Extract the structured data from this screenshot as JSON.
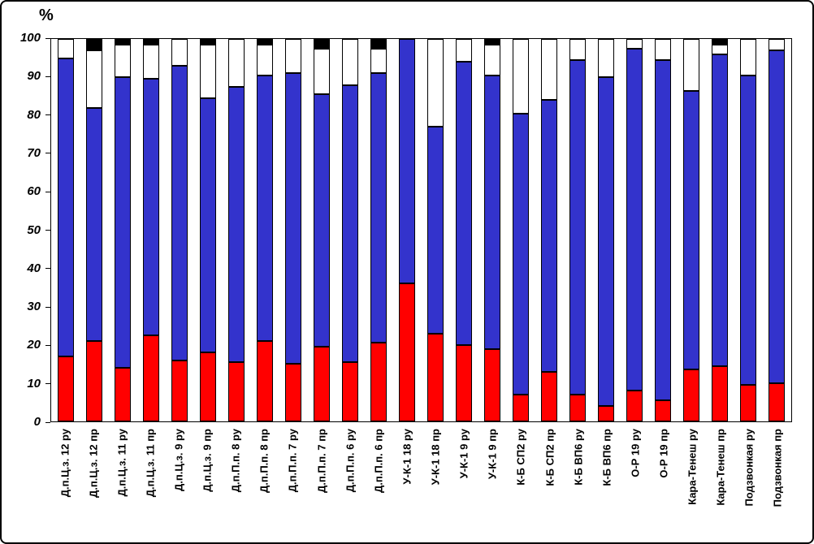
{
  "chart_data": {
    "type": "bar",
    "stacked": true,
    "title": "",
    "xlabel": "",
    "ylabel": "%",
    "ylim": [
      0,
      100
    ],
    "yticks": [
      0,
      10,
      20,
      30,
      40,
      50,
      60,
      70,
      80,
      90,
      100
    ],
    "grid": false,
    "legend": "none",
    "categories": [
      "Д.п.Ц.з. 12 ру",
      "Д.п.Ц.з. 12 пр",
      "Д.п.Ц.з. 11 ру",
      "Д.п.Ц.з. 11 пр",
      "Д.п.Ц.з. 9 ру",
      "Д.п.Ц.з. 9 пр",
      "Д.п.П.п. 8 ру",
      "Д.п.П.п. 8 пр",
      "Д.п.П.п. 7 ру",
      "Д.п.П.п. 7 пр",
      "Д.п.П.п. 6 ру",
      "Д.п.П.п. 6 пр",
      "У-К-1 18 ру",
      "У-К-1 18 пр",
      "У-К-1 9 ру",
      "У-К-1 9 пр",
      "К-Б СП2 ру",
      "К-Б СП2 пр",
      "К-Б ВП6 ру",
      "К-Б ВП6 пр",
      "О-Р 19 ру",
      "О-Р 19 пр",
      "Кара-Тенеш ру",
      "Кара-Тенеш пр",
      "Подзвонкая ру",
      "Подзвонкая пр"
    ],
    "series": [
      {
        "name": "red",
        "color": "#ff0000",
        "values": [
          17,
          21,
          14,
          22.5,
          16,
          18,
          15.5,
          21,
          15,
          19.5,
          15.5,
          20.5,
          36,
          23,
          20,
          19,
          7,
          13,
          7,
          4,
          8,
          5.5,
          13.5,
          14.5,
          9.5,
          10
        ]
      },
      {
        "name": "blue",
        "color": "#3333cc",
        "values": [
          78,
          61,
          76,
          67,
          77,
          66.5,
          72,
          69.5,
          76,
          66,
          72.5,
          70.5,
          64,
          54,
          74,
          71.5,
          73.5,
          71,
          87.5,
          86,
          89.5,
          89,
          73,
          81.5,
          81,
          87
        ]
      },
      {
        "name": "white",
        "color": "#ffffff",
        "values": [
          5,
          15,
          8.5,
          9,
          7,
          14,
          12.5,
          8,
          9,
          12,
          12,
          6.5,
          0,
          23,
          6,
          8,
          19.5,
          16,
          5.5,
          10,
          2.5,
          5.5,
          13.5,
          2.5,
          9.5,
          3
        ]
      },
      {
        "name": "black",
        "color": "#000000",
        "values": [
          0,
          3,
          1.5,
          1.5,
          0,
          1.5,
          0,
          1.5,
          0,
          2.5,
          0,
          2.5,
          0,
          0,
          0,
          1.5,
          0,
          0,
          0,
          0,
          0,
          0,
          0,
          1.5,
          0,
          0
        ]
      }
    ]
  }
}
